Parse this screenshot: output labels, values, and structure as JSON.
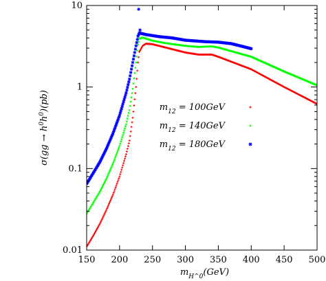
{
  "chart_data": {
    "type": "scatter",
    "xlabel": "m_{H^0}(GeV)",
    "ylabel": "σ(gg → h^0h^0)(pb)",
    "xlim": [
      150,
      500
    ],
    "ylim": [
      0.01,
      10
    ],
    "yscale": "log",
    "x_ticks": [
      "150",
      "200",
      "250",
      "300",
      "350",
      "400",
      "450",
      "500"
    ],
    "y_ticks": [
      "0.01",
      "0.1",
      "1",
      "10"
    ],
    "legend_position": "center-right",
    "series": [
      {
        "name": "m_{12} = 100GeV",
        "color": "#ff0000",
        "marker": "plus",
        "x_start": 150,
        "x_end": 500,
        "anchors": [
          [
            150,
            0.011
          ],
          [
            160,
            0.015
          ],
          [
            170,
            0.021
          ],
          [
            180,
            0.031
          ],
          [
            190,
            0.048
          ],
          [
            200,
            0.08
          ],
          [
            210,
            0.15
          ],
          [
            215,
            0.22
          ],
          [
            220,
            0.42
          ],
          [
            225,
            1.0
          ],
          [
            228,
            2.0
          ],
          [
            230,
            2.7
          ],
          [
            235,
            3.2
          ],
          [
            240,
            3.4
          ],
          [
            250,
            3.35
          ],
          [
            270,
            3.05
          ],
          [
            300,
            2.65
          ],
          [
            320,
            2.5
          ],
          [
            340,
            2.5
          ],
          [
            350,
            2.35
          ],
          [
            400,
            1.65
          ],
          [
            450,
            1.0
          ],
          [
            500,
            0.62
          ]
        ]
      },
      {
        "name": "m_{12} = 140GeV",
        "color": "#00ff00",
        "marker": "cross",
        "x_start": 150,
        "x_end": 500,
        "anchors": [
          [
            150,
            0.028
          ],
          [
            160,
            0.038
          ],
          [
            170,
            0.052
          ],
          [
            180,
            0.075
          ],
          [
            190,
            0.115
          ],
          [
            200,
            0.19
          ],
          [
            210,
            0.35
          ],
          [
            215,
            0.52
          ],
          [
            220,
            0.95
          ],
          [
            225,
            2.0
          ],
          [
            228,
            3.3
          ],
          [
            230,
            3.9
          ],
          [
            235,
            4.05
          ],
          [
            250,
            3.7
          ],
          [
            270,
            3.45
          ],
          [
            300,
            3.2
          ],
          [
            320,
            3.1
          ],
          [
            340,
            3.15
          ],
          [
            350,
            3.05
          ],
          [
            400,
            2.35
          ],
          [
            450,
            1.55
          ],
          [
            500,
            1.05
          ]
        ]
      },
      {
        "name": "m_{12} = 180GeV",
        "color": "#0000ff",
        "marker": "star",
        "x_start": 150,
        "x_end": 400,
        "anchors": [
          [
            150,
            0.065
          ],
          [
            160,
            0.088
          ],
          [
            170,
            0.12
          ],
          [
            180,
            0.175
          ],
          [
            190,
            0.27
          ],
          [
            200,
            0.45
          ],
          [
            210,
            0.85
          ],
          [
            215,
            1.25
          ],
          [
            220,
            2.0
          ],
          [
            225,
            3.2
          ],
          [
            228,
            4.2
          ],
          [
            230,
            4.6
          ],
          [
            240,
            4.4
          ],
          [
            260,
            4.15
          ],
          [
            280,
            4.0
          ],
          [
            300,
            3.75
          ],
          [
            330,
            3.6
          ],
          [
            350,
            3.55
          ],
          [
            370,
            3.4
          ],
          [
            390,
            3.1
          ],
          [
            400,
            2.95
          ]
        ]
      }
    ],
    "outliers": [
      {
        "series": 2,
        "x": 229,
        "y": 9.0
      },
      {
        "series": 2,
        "x": 231,
        "y": 5.0
      }
    ]
  }
}
